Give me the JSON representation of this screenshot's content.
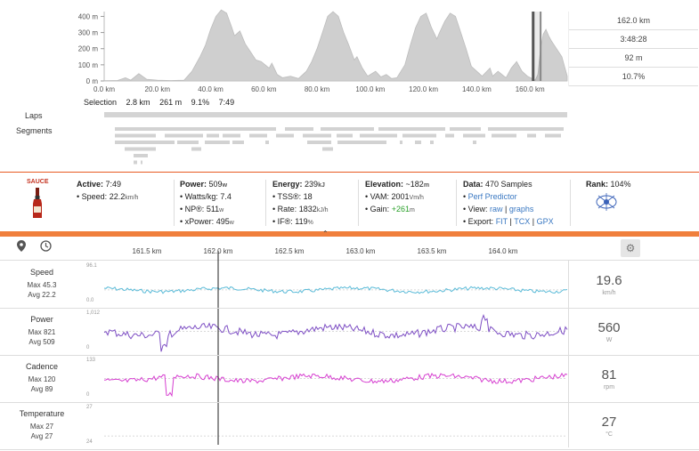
{
  "elevation": {
    "y_ticks": [
      "400 m",
      "300 m",
      "200 m",
      "100 m",
      "0 m"
    ],
    "x_ticks": [
      "0.0 km",
      "20.0 km",
      "40.0 km",
      "60.0 km",
      "80.0 km",
      "100.0 km",
      "120.0 km",
      "140.0 km",
      "160.0 km"
    ],
    "x_range_km": [
      0,
      174
    ],
    "y_range_m": [
      0,
      430
    ],
    "profile": [
      [
        0,
        2
      ],
      [
        5,
        3
      ],
      [
        8,
        20
      ],
      [
        10,
        5
      ],
      [
        13,
        45
      ],
      [
        16,
        10
      ],
      [
        20,
        5
      ],
      [
        25,
        3
      ],
      [
        30,
        5
      ],
      [
        33,
        60
      ],
      [
        36,
        150
      ],
      [
        38,
        220
      ],
      [
        40,
        320
      ],
      [
        42,
        400
      ],
      [
        44,
        440
      ],
      [
        46,
        420
      ],
      [
        48,
        330
      ],
      [
        49,
        280
      ],
      [
        51,
        310
      ],
      [
        53,
        230
      ],
      [
        55,
        180
      ],
      [
        57,
        130
      ],
      [
        59,
        120
      ],
      [
        62,
        80
      ],
      [
        63,
        110
      ],
      [
        65,
        40
      ],
      [
        67,
        20
      ],
      [
        70,
        30
      ],
      [
        73,
        15
      ],
      [
        76,
        60
      ],
      [
        78,
        120
      ],
      [
        80,
        200
      ],
      [
        82,
        300
      ],
      [
        84,
        400
      ],
      [
        86,
        430
      ],
      [
        88,
        400
      ],
      [
        90,
        300
      ],
      [
        92,
        220
      ],
      [
        94,
        130
      ],
      [
        95,
        150
      ],
      [
        97,
        80
      ],
      [
        99,
        30
      ],
      [
        102,
        60
      ],
      [
        104,
        25
      ],
      [
        106,
        40
      ],
      [
        108,
        15
      ],
      [
        110,
        20
      ],
      [
        113,
        100
      ],
      [
        115,
        220
      ],
      [
        117,
        330
      ],
      [
        119,
        400
      ],
      [
        121,
        420
      ],
      [
        123,
        330
      ],
      [
        125,
        260
      ],
      [
        126,
        300
      ],
      [
        128,
        370
      ],
      [
        130,
        420
      ],
      [
        132,
        400
      ],
      [
        134,
        300
      ],
      [
        136,
        200
      ],
      [
        138,
        90
      ],
      [
        140,
        60
      ],
      [
        142,
        30
      ],
      [
        145,
        80
      ],
      [
        146,
        30
      ],
      [
        148,
        60
      ],
      [
        151,
        20
      ],
      [
        153,
        80
      ],
      [
        155,
        120
      ],
      [
        157,
        60
      ],
      [
        159,
        30
      ],
      [
        162,
        5
      ],
      [
        163,
        40
      ],
      [
        164,
        200
      ],
      [
        165,
        290
      ],
      [
        166,
        320
      ],
      [
        167,
        280
      ],
      [
        168,
        250
      ],
      [
        170,
        200
      ],
      [
        172,
        150
      ],
      [
        174,
        30
      ]
    ],
    "selection_range_km": [
      161.2,
      164
    ]
  },
  "summary": {
    "distance": "162.0 km",
    "time": "3:48:28",
    "elevation": "92 m",
    "grade": "10.7%"
  },
  "selection": {
    "label": "Selection",
    "distance": "2.8 km",
    "elevation": "261 m",
    "grade": "9.1%",
    "time": "7:49"
  },
  "rows": {
    "laps": "Laps",
    "segments": "Segments"
  },
  "stats": {
    "sauce_label": "SAUCE",
    "active": {
      "label": "Active:",
      "value": "7:49"
    },
    "speed": {
      "label": "• Speed:",
      "value": "22.2",
      "unit": "km/h"
    },
    "power": {
      "label": "Power:",
      "value": "509",
      "unit": "w"
    },
    "watts_kg": {
      "label": "• Watts/kg:",
      "value": "7.4"
    },
    "np": {
      "label": "• NP®:",
      "value": "511",
      "unit": "w"
    },
    "xpower": {
      "label": "• xPower:",
      "value": "495",
      "unit": "w"
    },
    "energy": {
      "label": "Energy:",
      "value": "239",
      "unit": "kJ"
    },
    "tss": {
      "label": "• TSS®:",
      "value": "18"
    },
    "rate": {
      "label": "• Rate:",
      "value": "1832",
      "unit": "kJ/h"
    },
    "if": {
      "label": "• IF®:",
      "value": "119",
      "unit": "%"
    },
    "elevation": {
      "label": "Elevation:",
      "value": "~182",
      "unit": "m"
    },
    "vam": {
      "label": "• VAM:",
      "value": "2001",
      "unit": "Vm/h"
    },
    "gain": {
      "label": "• Gain:",
      "value": "+261",
      "unit": "m"
    },
    "data": {
      "label": "Data:",
      "value": "470 Samples"
    },
    "perf_predictor": "Perf Predictor",
    "view_label": "• View:",
    "view_raw": "raw",
    "view_graphs": "graphs",
    "export_label": "• Export:",
    "export_fit": "FIT",
    "export_tcx": "TCX",
    "export_gpx": "GPX",
    "rank": {
      "label": "Rank:",
      "value": "104%"
    }
  },
  "toolbar": {
    "x_ticks": [
      "161.5 km",
      "162.0 km",
      "162.5 km",
      "163.0 km",
      "163.5 km",
      "164.0 km"
    ],
    "x_tick_values_km": [
      161.5,
      162.0,
      162.5,
      163.0,
      163.5,
      164.0
    ],
    "x_range_km": [
      161.2,
      164.45
    ]
  },
  "streams": [
    {
      "name": "Speed",
      "max": "Max 45.3",
      "avg": "Avg 22.2",
      "ymax": "96.1",
      "ymin": "0.0",
      "current": "19.6",
      "unit": "km/h",
      "color": "#5bbbd8"
    },
    {
      "name": "Power",
      "max": "Max 821",
      "avg": "Avg 509",
      "ymax": "1,012",
      "ymin": "0",
      "current": "560",
      "unit": "W",
      "color": "#7e4fc4"
    },
    {
      "name": "Cadence",
      "max": "Max 120",
      "avg": "Avg 89",
      "ymax": "133",
      "ymin": "0",
      "current": "81",
      "unit": "rpm",
      "color": "#d63fd0"
    },
    {
      "name": "Temperature",
      "max": "Max 27",
      "avg": "Avg 27",
      "ymax": "27",
      "ymin": "24",
      "current": "27",
      "unit": "°C",
      "color": "#999999"
    }
  ],
  "cursor_km": 162.0
}
